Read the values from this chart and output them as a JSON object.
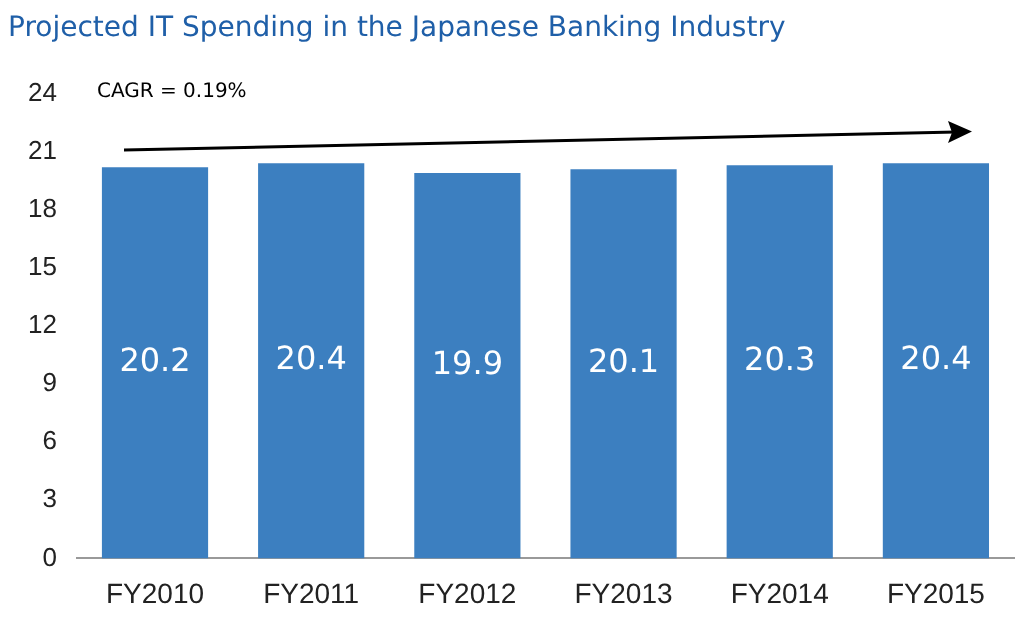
{
  "chart_data": {
    "type": "bar",
    "title": "Projected IT Spending in the Japanese Banking Industry",
    "categories": [
      "FY2010",
      "FY2011",
      "FY2012",
      "FY2013",
      "FY2014",
      "FY2015"
    ],
    "values": [
      20.2,
      20.4,
      19.9,
      20.1,
      20.3,
      20.4
    ],
    "color": "#3c7fc0",
    "ylim": [
      0,
      24
    ],
    "yticks": [
      0,
      3,
      6,
      9,
      12,
      15,
      18,
      21,
      24
    ],
    "grid": false,
    "data_labels": true,
    "annotations": [
      "CAGR = 0.19%"
    ]
  }
}
